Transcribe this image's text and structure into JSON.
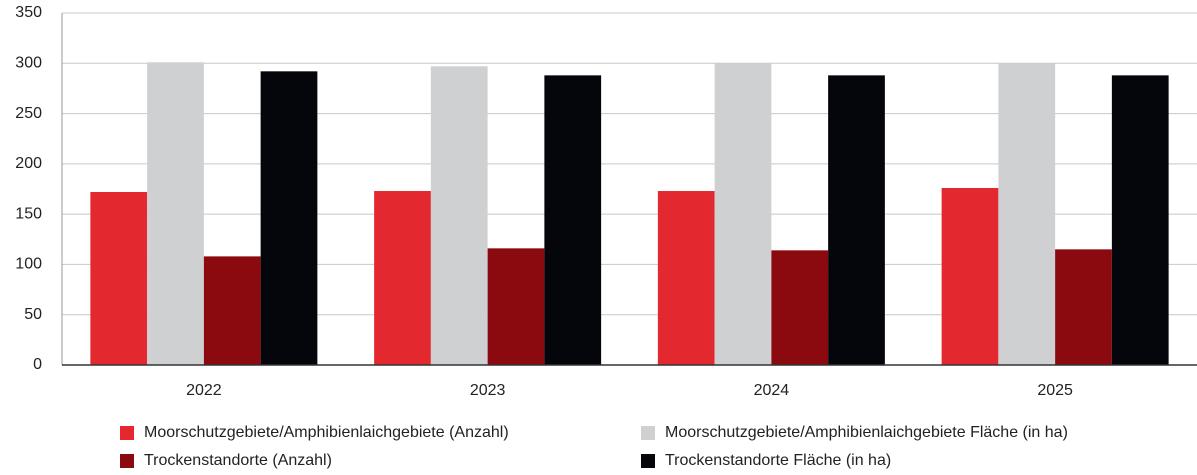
{
  "chart_data": {
    "type": "bar",
    "categories": [
      "2022",
      "2023",
      "2024",
      "2025"
    ],
    "series": [
      {
        "name": "Moorschutzgebiete/Amphibienlaichgebiete (Anzahl)",
        "color": "#e3282f",
        "values": [
          172,
          173,
          173,
          176
        ]
      },
      {
        "name": "Moorschutzgebiete/Amphibienlaichgebiete Fläche (in ha)",
        "color": "#cfd0d2",
        "values": [
          301,
          297,
          300,
          300
        ]
      },
      {
        "name": "Trockenstandorte (Anzahl)",
        "color": "#8b0a10",
        "values": [
          108,
          116,
          114,
          115
        ]
      },
      {
        "name": "Trockenstandorte Fläche (in ha)",
        "color": "#05060c",
        "values": [
          292,
          288,
          288,
          288
        ]
      }
    ],
    "ylim": [
      0,
      350
    ],
    "yticks": [
      0,
      50,
      100,
      150,
      200,
      250,
      300,
      350
    ],
    "grid": true
  }
}
